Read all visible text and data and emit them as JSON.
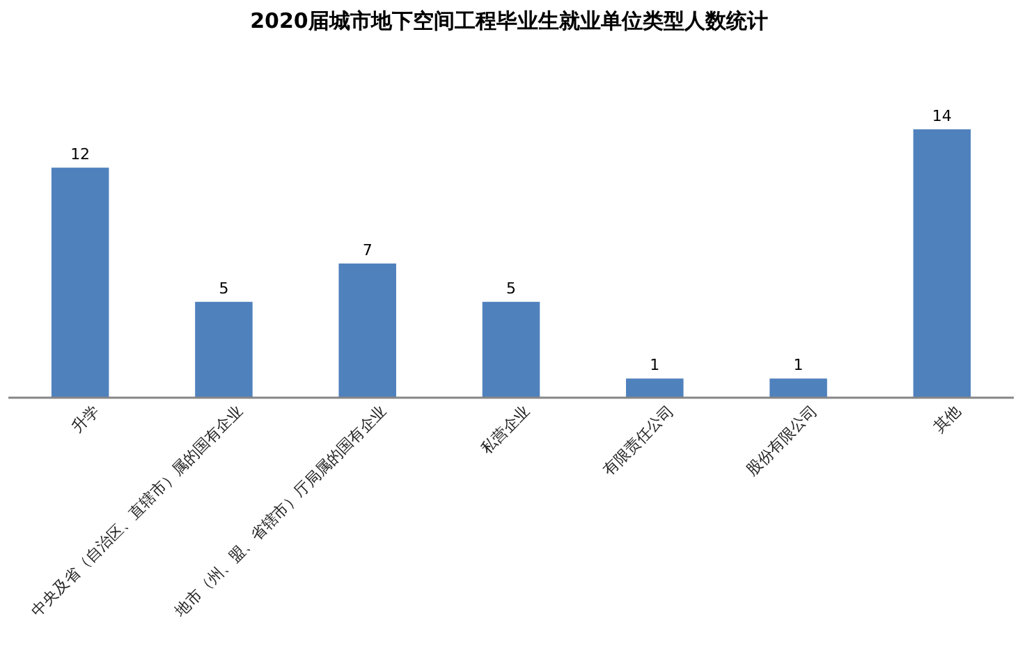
{
  "chart_data": {
    "type": "bar",
    "title": "2020届城市地下空间工程毕业生就业单位类型人数统计",
    "categories": [
      "升学",
      "中央及省（自治区、直辖市）属的国有企业",
      "地市（州、盟、省辖市）厅局属的国有企业",
      "私营企业",
      "有限责任公司",
      "股份有限公司",
      "其他"
    ],
    "values": [
      12,
      5,
      7,
      5,
      1,
      1,
      14
    ],
    "color": "#4f81bd",
    "data_labels": true
  }
}
